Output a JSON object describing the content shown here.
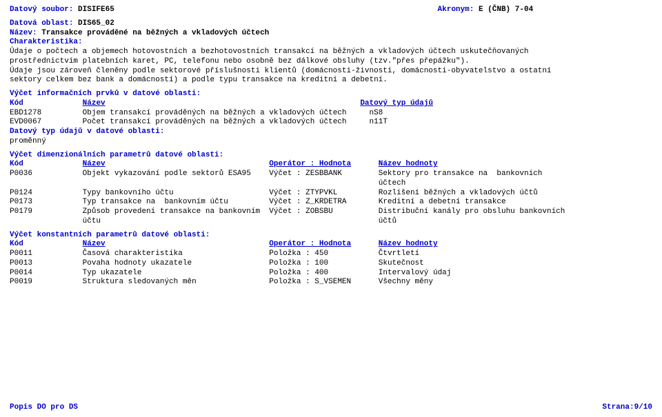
{
  "colors": {
    "blue": "#0000c8",
    "black": "#000000",
    "background": "#ffffff"
  },
  "typography": {
    "font_family": "Courier New, monospace",
    "font_size_pt": 8.5,
    "line_height": 1.25
  },
  "header": {
    "top_left_label": "Datový soubor: ",
    "top_left_value": "DISIFE65",
    "top_right_label": "Akronym: ",
    "top_right_value": "E (ČNB) 7-04",
    "area_label": "Datová oblast: ",
    "area_value": "DIS65_02",
    "name_label": "Název: ",
    "name_value": "Transakce prováděné na běžných a vkladových účtech"
  },
  "charak": {
    "heading": "Charakteristika:",
    "line1": "Údaje o počtech a objemech hotovostních a bezhotovostních transakcí na běžných a vkladových účtech uskutečňovaných",
    "line2": "prostřednictvím platebních karet, PC, telefonu nebo osobně bez dálkové obsluhy (tzv.\"přes přepážku\").",
    "line3": "Údaje jsou zároveň členěny podle sektorové příslušnosti klientů (domácnosti-živnosti, domácnosti-obyvatelstvo a ostatní",
    "line4": "sektory celkem bez bank a domácností) a podle typu transakce na kreditní a debetní."
  },
  "info_elems": {
    "heading": "Výčet informačních prvků v datové oblasti:",
    "hdr_code": "Kód",
    "hdr_name": "Název",
    "hdr_type": "Datový typ údajů",
    "r1_code": "EBD1278",
    "r1_name": "Objem transakcí prováděných na běžných a vkladových účtech",
    "r1_type": "nS8",
    "r2_code": "EVD0067",
    "r2_name": "Počet transakcí prováděných na běžných a vkladových účtech",
    "r2_type": "n11T",
    "dt_label": "Datový typ údajů v datové oblasti:",
    "dt_value": "proměnný"
  },
  "dim_params": {
    "heading": "Výčet dimenzionálních parametrů datové oblasti:",
    "hdr_code": "Kód",
    "hdr_name": "Název",
    "hdr_op": "Operátor : Hodnota",
    "hdr_valname": "Název hodnoty",
    "r1_code": "P0036",
    "r1_name": "Objekt vykazování podle sektorů ESA95",
    "r1_op": "Výčet : ZESBBANK",
    "r1_val": "Sektory pro transakce na  bankovních",
    "r1_val_cont": "účtech",
    "r2_code": "P0124",
    "r2_name": "Typy bankovního účtu",
    "r2_op": "Výčet : ZTYPVKL",
    "r2_val": "Rozlišení běžných a vkladových účtů",
    "r3_code": "P0173",
    "r3_name": "Typ transakce na  bankovním účtu",
    "r3_op": "Výčet : Z_KRDETRA",
    "r3_val": "Kreditní a debetní transakce",
    "r4_code": "P0179",
    "r4_name": "Způsob provedení transakce na bankovním",
    "r4_op": "Výčet : ZOBSBU",
    "r4_val": "Distribuční kanály pro obsluhu bankovních",
    "r4_name_cont": "účtu",
    "r4_val_cont": "účtů"
  },
  "const_params": {
    "heading": "Výčet konstantních parametrů datové oblasti:",
    "hdr_code": "Kód",
    "hdr_name": "Název",
    "hdr_op": "Operátor : Hodnota",
    "hdr_valname": "Název hodnoty",
    "r1_code": "P0011",
    "r1_name": "Časová charakteristika",
    "r1_op": "Položka : 450",
    "r1_val": "Čtvrtletí",
    "r2_code": "P0013",
    "r2_name": "Povaha hodnoty ukazatele",
    "r2_op": "Položka : 100",
    "r2_val": "Skutečnost",
    "r3_code": "P0014",
    "r3_name": "Typ ukazatele",
    "r3_op": "Položka : 400",
    "r3_val": "Intervalový údaj",
    "r4_code": "P0019",
    "r4_name": "Struktura sledovaných měn",
    "r4_op": "Položka : S_VSEMEN",
    "r4_val": "Všechny měny"
  },
  "footer": {
    "left": "Popis DO pro DS",
    "right": "Strana:9/10"
  }
}
